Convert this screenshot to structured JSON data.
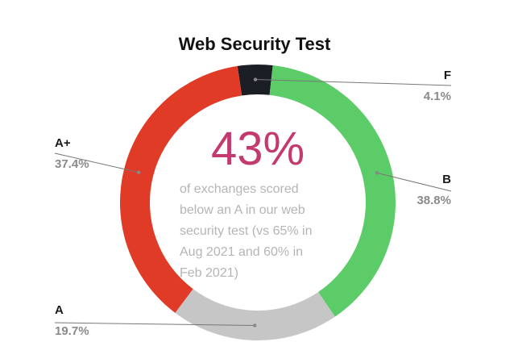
{
  "chart_data": {
    "type": "pie",
    "title": "Web Security Test",
    "categories": [
      "F",
      "B",
      "A",
      "A+"
    ],
    "values": [
      4.1,
      38.8,
      19.7,
      37.4
    ],
    "value_labels": [
      "4.1%",
      "38.8%",
      "19.7%",
      "37.4%"
    ],
    "colors": [
      "#1b1e24",
      "#5ccc68",
      "#c6c6c6",
      "#df3b26"
    ],
    "donut": true,
    "legend": "labels outside slices with leader lines",
    "center_stat": "43%",
    "center_text": [
      "of exchanges  scored",
      "below an A in our web",
      "security test (vs 65% in",
      "Aug 2021 and  60% in",
      "Feb 2021)"
    ]
  }
}
